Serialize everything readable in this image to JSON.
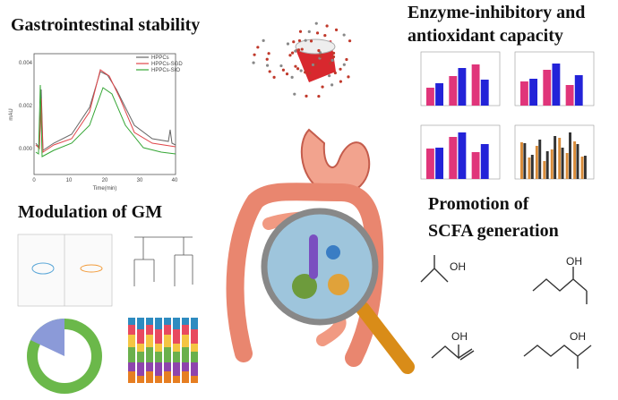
{
  "panels": {
    "gi_stability": {
      "title": "Gastrointestinal stability",
      "chromatogram": {
        "y_label": "mAU",
        "x_label": "Time(min)",
        "y_ticks": [
          "0.004",
          "0.002",
          "0.000"
        ],
        "x_ticks": [
          "0",
          "10",
          "20",
          "30",
          "40"
        ],
        "legend": [
          "HPPCs",
          "HPPCs-SGD",
          "HPPCs-SIO"
        ]
      }
    },
    "enzyme": {
      "title_lines": [
        "Enzyme-inhibitory and",
        "antioxidant capacity"
      ]
    },
    "gm": {
      "title": "Modulation of GM"
    },
    "scfa": {
      "title_lines": [
        "Promotion of",
        "SCFA generation"
      ],
      "hydroxyl_labels": [
        "OH",
        "OH",
        "OH",
        "OH"
      ]
    }
  }
}
